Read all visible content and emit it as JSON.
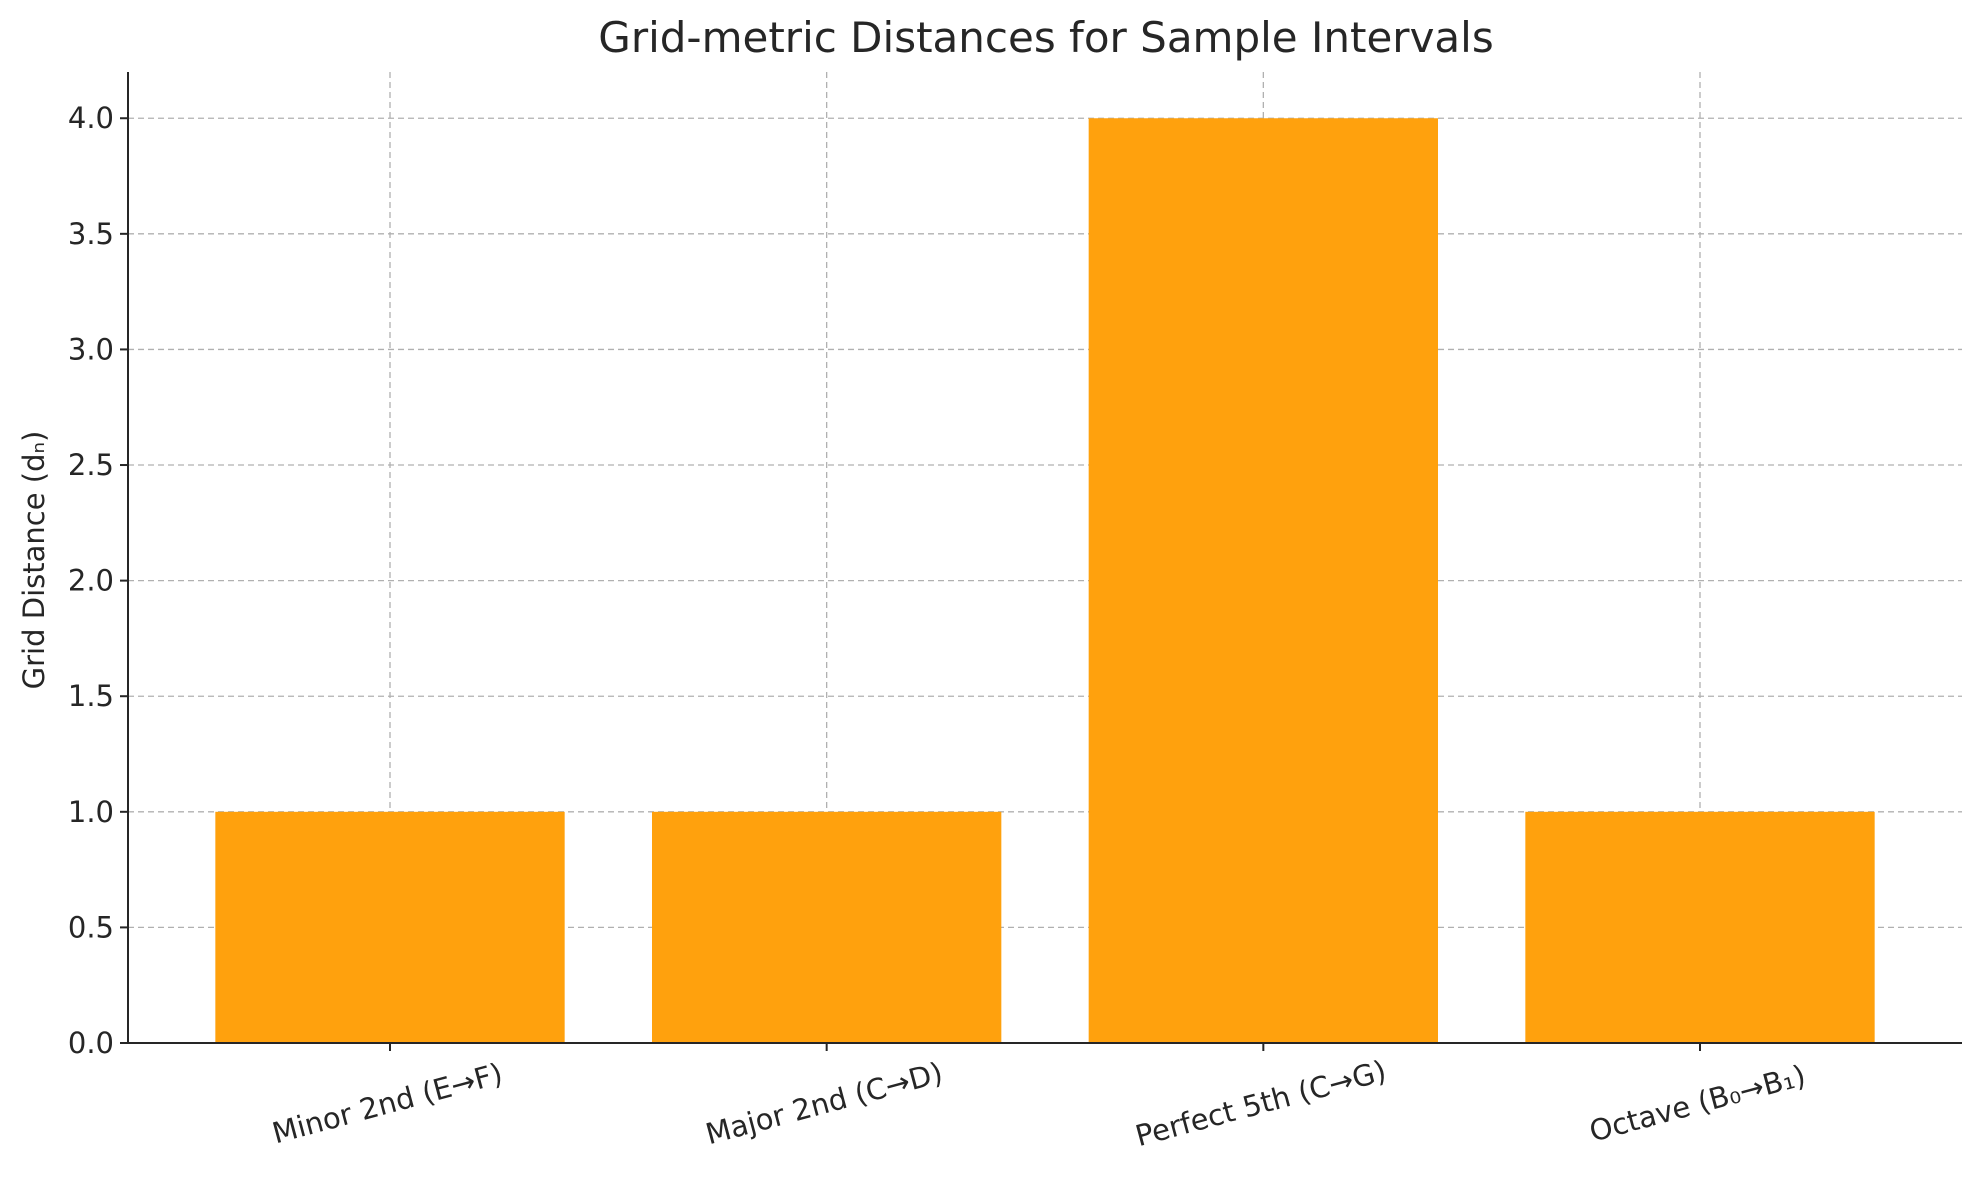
{
  "chart_data": {
    "type": "bar",
    "title": "Grid-metric Distances for Sample Intervals",
    "xlabel": "",
    "ylabel": "Grid Distance (dₙ)",
    "categories": [
      "Minor 2nd (E→F)",
      "Major 2nd (C→D)",
      "Perfect 5th (C→G)",
      "Octave (B₀→B₁)"
    ],
    "values": [
      1,
      1,
      4,
      1
    ],
    "ylim": [
      0,
      4.2
    ],
    "yticks": [
      "0.0",
      "0.5",
      "1.0",
      "1.5",
      "2.0",
      "2.5",
      "3.0",
      "3.5",
      "4.0"
    ],
    "bar_color": "#ffa10d",
    "grid": true,
    "legend": "none"
  }
}
